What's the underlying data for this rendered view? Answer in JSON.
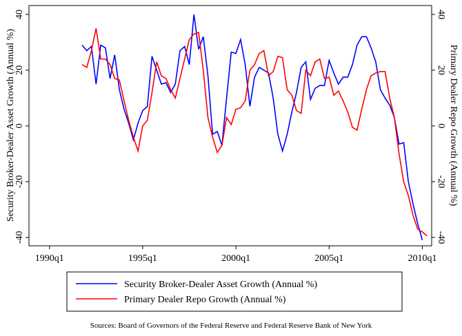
{
  "chart_data": {
    "type": "line",
    "y_label": "Security Broker-Dealer Asset Growth (Annual %)",
    "y2_label": "Primary Dealer Repo Growth (Annual %)",
    "source": "Sources: Board of Governors of the Federal Reserve and Federal Reserve Bank of New York",
    "x": [
      1991.75,
      1992,
      1992.25,
      1992.5,
      1992.75,
      1993,
      1993.25,
      1993.5,
      1993.75,
      1994,
      1994.25,
      1994.5,
      1994.75,
      1995,
      1995.25,
      1995.5,
      1995.75,
      1996,
      1996.25,
      1996.5,
      1996.75,
      1997,
      1997.25,
      1997.5,
      1997.75,
      1998,
      1998.25,
      1998.5,
      1998.75,
      1999,
      1999.25,
      1999.5,
      1999.75,
      2000,
      2000.25,
      2000.5,
      2000.75,
      2001,
      2001.25,
      2001.5,
      2001.75,
      2002,
      2002.25,
      2002.5,
      2002.75,
      2003,
      2003.25,
      2003.5,
      2003.75,
      2004,
      2004.25,
      2004.5,
      2004.75,
      2005,
      2005.25,
      2005.5,
      2005.75,
      2006,
      2006.25,
      2006.5,
      2006.75,
      2007,
      2007.25,
      2007.5,
      2007.75,
      2008,
      2008.25,
      2008.5,
      2008.75,
      2009,
      2009.25,
      2009.5,
      2009.75,
      2010,
      2010.25
    ],
    "series": [
      {
        "name": "Security Broker-Dealer Asset Growth (Annual %)",
        "color": "#0000ff",
        "values": [
          29,
          27,
          28.5,
          15,
          29,
          28,
          17,
          25.5,
          13,
          6,
          1,
          -5,
          1,
          5.5,
          7,
          25,
          20,
          15,
          15.5,
          12,
          15,
          27,
          28.5,
          22,
          40,
          27.5,
          32,
          18,
          -3,
          -2,
          -7,
          10,
          26.5,
          26,
          31,
          22,
          7,
          17.5,
          21,
          20,
          19,
          10,
          -3,
          -9,
          -3,
          5,
          12,
          21,
          23,
          9.5,
          13.5,
          14.5,
          14.5,
          23.5,
          19,
          15,
          17.5,
          17.5,
          22,
          29,
          32,
          32,
          28,
          23,
          13,
          10,
          7.5,
          3,
          -6.5,
          -6,
          -20,
          -28,
          -35,
          -41,
          null
        ]
      },
      {
        "name": "Primary Dealer Repo Growth (Annual %)",
        "color": "#ff0000",
        "axis": "y2",
        "values": [
          22,
          21,
          27,
          35,
          24,
          24,
          22,
          17,
          16.5,
          9,
          2,
          -4,
          -9,
          0,
          2,
          12,
          23,
          18,
          17,
          13,
          10,
          17,
          24,
          31,
          33,
          33.5,
          20,
          3,
          -4,
          -9.5,
          -7,
          3,
          0.5,
          6,
          6.5,
          9,
          20,
          22,
          26,
          27,
          18,
          19.5,
          25,
          24.5,
          13,
          11,
          5.5,
          4.5,
          20,
          18,
          23,
          24,
          17,
          17.5,
          11,
          12.5,
          9,
          5,
          -0.5,
          -1.5,
          6,
          13,
          18,
          19,
          19.5,
          19.5,
          10,
          3,
          -10,
          -20,
          -25,
          -32,
          -37,
          -38,
          -39.5
        ]
      }
    ],
    "xlim": [
      1988.9,
      2010.5
    ],
    "xticks": [
      {
        "value": 1990,
        "label": "1990q1"
      },
      {
        "value": 1995,
        "label": "1995q1"
      },
      {
        "value": 2000,
        "label": "2000q1"
      },
      {
        "value": 2005,
        "label": "2005q1"
      },
      {
        "value": 2010,
        "label": "2010q1"
      }
    ],
    "ylim": [
      -43,
      43.2
    ],
    "yticks": [
      -40,
      -20,
      0,
      20,
      40
    ],
    "y2lim": [
      -43,
      43.2
    ],
    "y2ticks": [
      -40,
      -20,
      0,
      20,
      40
    ],
    "grid": false
  }
}
